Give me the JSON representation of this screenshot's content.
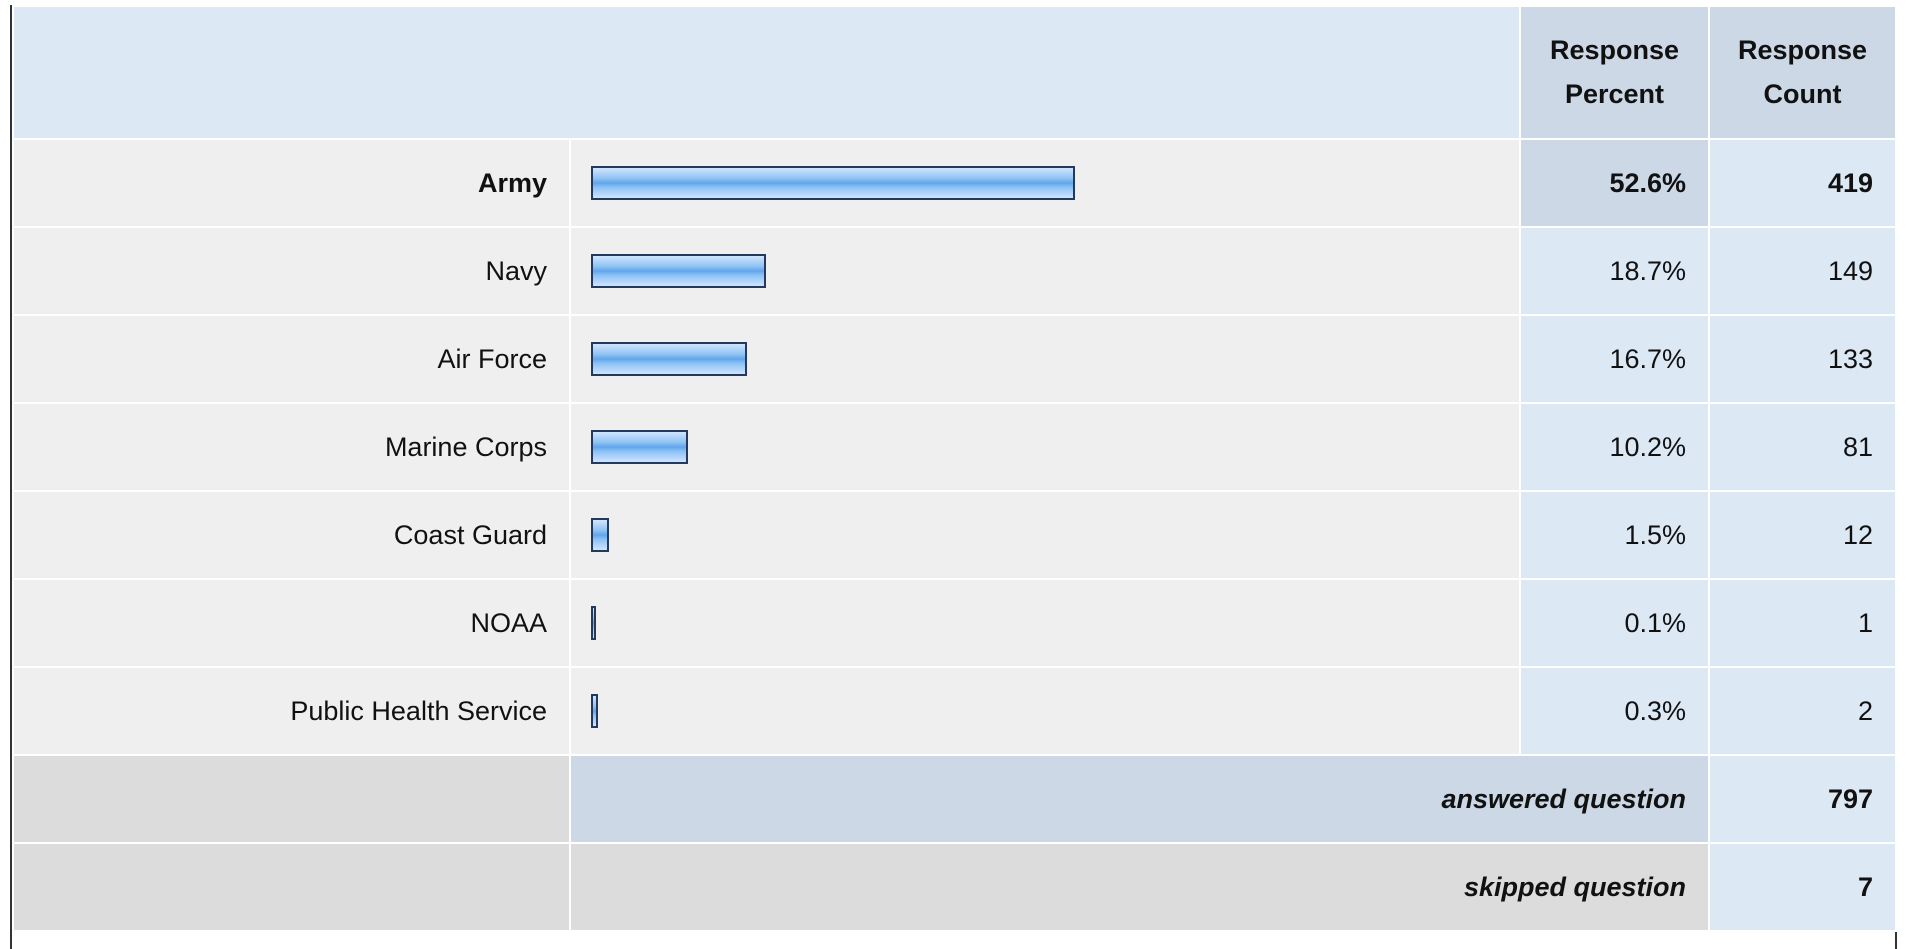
{
  "table": {
    "header": {
      "percent": "Response Percent",
      "count": "Response Count"
    },
    "rows": [
      {
        "label": "Army",
        "percent": 52.6,
        "percent_label": "52.6%",
        "count": 419
      },
      {
        "label": "Navy",
        "percent": 18.7,
        "percent_label": "18.7%",
        "count": 149
      },
      {
        "label": "Air Force",
        "percent": 16.7,
        "percent_label": "16.7%",
        "count": 133
      },
      {
        "label": "Marine Corps",
        "percent": 10.2,
        "percent_label": "10.2%",
        "count": 81
      },
      {
        "label": "Coast Guard",
        "percent": 1.5,
        "percent_label": "1.5%",
        "count": 12
      },
      {
        "label": "NOAA",
        "percent": 0.1,
        "percent_label": "0.1%",
        "count": 1
      },
      {
        "label": "Public Health Service",
        "percent": 0.3,
        "percent_label": "0.3%",
        "count": 2
      }
    ],
    "summary": [
      {
        "label": "answered question",
        "count": 797
      },
      {
        "label": "skipped question",
        "count": 7
      }
    ]
  }
}
